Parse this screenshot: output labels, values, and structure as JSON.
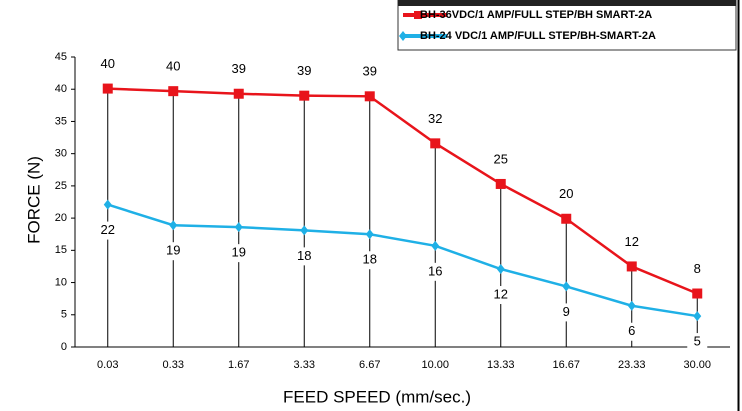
{
  "chart_data": {
    "type": "line",
    "x_label": "FEED SPEED (mm/sec.)",
    "y_label": "FORCE (N)",
    "categories": [
      "0.03",
      "0.33",
      "1.67",
      "3.33",
      "6.67",
      "10.00",
      "13.33",
      "16.67",
      "23.33",
      "30.00"
    ],
    "series": [
      {
        "name": "BH-36VDC/1 AMP/FULL STEP/BH SMART-2A",
        "color": "#e8141b",
        "marker": "square",
        "values": [
          40.1,
          39.7,
          39.3,
          39.0,
          38.9,
          31.6,
          25.3,
          19.9,
          12.5,
          8.3
        ],
        "value_labels": [
          "40",
          "40",
          "39",
          "39",
          "39",
          "32",
          "25",
          "20",
          "12",
          "8"
        ]
      },
      {
        "name": "BH-24 VDC/1 AMP/FULL STEP/BH-SMART-2A",
        "color": "#1fb0e6",
        "marker": "diamond",
        "values": [
          22.1,
          18.9,
          18.6,
          18.1,
          17.5,
          15.7,
          12.1,
          9.4,
          6.4,
          4.8
        ],
        "value_labels": [
          "22",
          "19",
          "19",
          "18",
          "18",
          "16",
          "12",
          "9",
          "6",
          "5"
        ]
      }
    ],
    "ylim": [
      0,
      45
    ],
    "yticks": [
      0,
      5,
      10,
      15,
      20,
      25,
      30,
      35,
      40,
      45
    ],
    "legend": "top-right"
  }
}
